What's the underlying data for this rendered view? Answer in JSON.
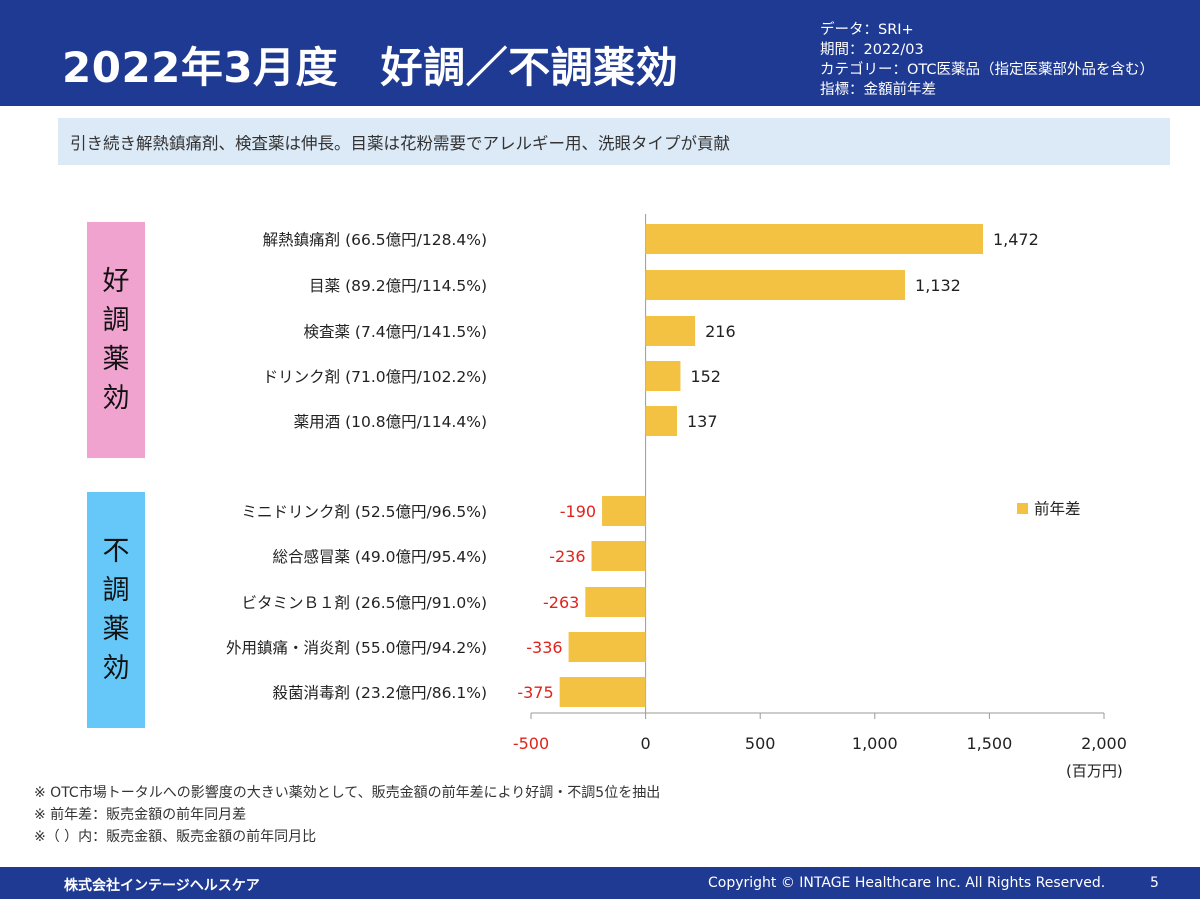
{
  "header": {
    "title": "2022年3月度　好調／不調薬効",
    "meta": [
      "データ：SRI+",
      "期間：2022/03",
      "カテゴリー：OTC医薬品（指定医薬部外品を含む）",
      "指標：金額前年差"
    ]
  },
  "summary": "引き続き解熱鎮痛剤、検査薬は伸長。目薬は花粉需要でアレルギー用、洗眼タイプが貢献",
  "groups": {
    "good": [
      "好",
      "調",
      "薬",
      "効"
    ],
    "bad": [
      "不",
      "調",
      "薬",
      "効"
    ]
  },
  "chart_data": {
    "type": "bar",
    "orientation": "horizontal",
    "categories": [
      "解熱鎮痛剤 (66.5億円/128.4%)",
      "目薬 (89.2億円/114.5%)",
      "検査薬 (7.4億円/141.5%)",
      "ドリンク剤 (71.0億円/102.2%)",
      "薬用酒 (10.8億円/114.4%)",
      "ミニドリンク剤 (52.5億円/96.5%)",
      "総合感冒薬 (49.0億円/95.4%)",
      "ビタミンＢ１剤 (26.5億円/91.0%)",
      "外用鎮痛・消炎剤 (55.0億円/94.2%)",
      "殺菌消毒剤 (23.2億円/86.1%)"
    ],
    "series": [
      {
        "name": "前年差",
        "values": [
          1472,
          1132,
          216,
          152,
          137,
          -190,
          -236,
          -263,
          -336,
          -375
        ],
        "labels": [
          "1,472",
          "1,132",
          "216",
          "152",
          "137",
          "-190",
          "-236",
          "-263",
          "-336",
          "-375"
        ]
      }
    ],
    "xlim": [
      -500,
      2000
    ],
    "xticks": [
      -500,
      0,
      500,
      1000,
      1500,
      2000
    ],
    "xtick_labels": [
      "-500",
      "0",
      "500",
      "1,000",
      "1,500",
      "2,000"
    ],
    "xunit": "(百万円)",
    "legend_position": "right",
    "colors": {
      "bar": "#f3c242",
      "negative_text": "#e0231c",
      "positive_text": "#222222"
    }
  },
  "notes": [
    "※ OTC市場トータルへの影響度の大きい薬効として、販売金額の前年差により好調・不調5位を抽出",
    "※ 前年差：販売金額の前年同月差",
    "※（ ）内：販売金額、販売金額の前年同月比"
  ],
  "footer": {
    "company": "株式会社インテージヘルスケア",
    "copyright": "Copyright © INTAGE Healthcare Inc. All Rights Reserved.",
    "page": "5"
  }
}
